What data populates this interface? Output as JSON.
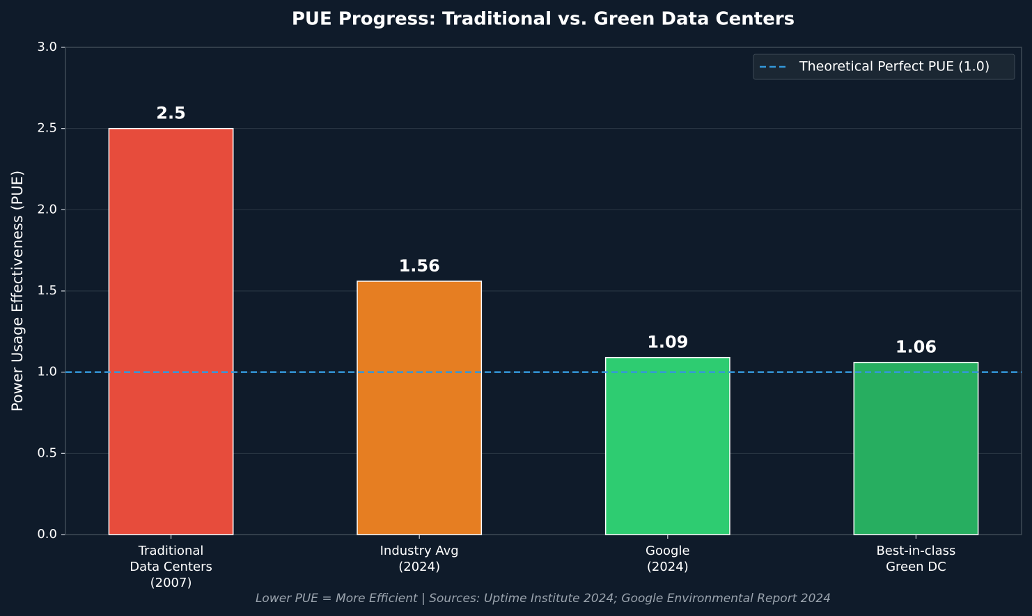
{
  "chart_data": {
    "type": "bar",
    "title": "PUE Progress: Traditional vs. Green Data Centers",
    "ylabel": "Power Usage Effectiveness (PUE)",
    "categories": [
      "Traditional\nData Centers\n(2007)",
      "Industry Avg\n(2024)",
      "Google\n(2024)",
      "Best-in-class\nGreen DC"
    ],
    "values": [
      2.5,
      1.56,
      1.09,
      1.06
    ],
    "colors": [
      "#e74c3c",
      "#e67e22",
      "#2ecc71",
      "#27ae60"
    ],
    "ylim": [
      0,
      3
    ],
    "yticks": [
      {
        "value": 0,
        "label": "0.0"
      },
      0.5,
      {
        "value": 1,
        "label": "1.0"
      },
      1.5,
      {
        "value": 2,
        "label": "2.0"
      },
      2.5,
      {
        "value": 3,
        "label": "3.0"
      }
    ],
    "grid": true,
    "reference_line": {
      "value": 1,
      "label": "Theoretical Perfect PUE (1.0)",
      "color": "#3498db"
    },
    "legend_position": "upper right",
    "footnote": "Lower PUE = More Efficient  |  Sources: Uptime Institute 2024; Google Environmental Report 2024"
  }
}
